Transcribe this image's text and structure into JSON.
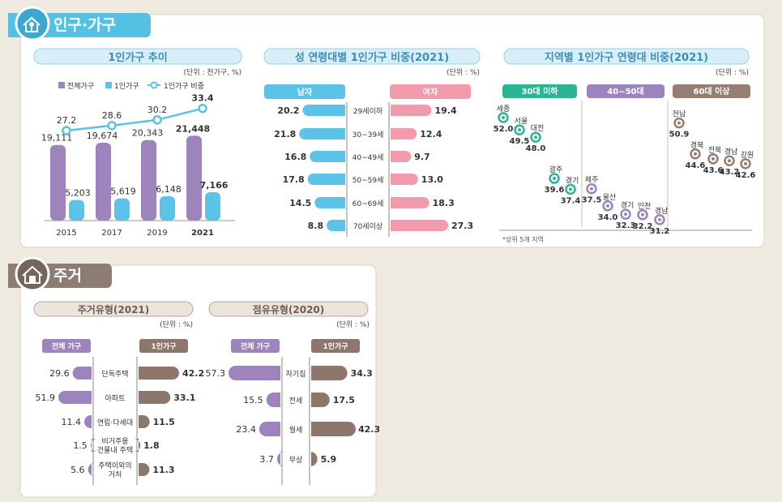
{
  "sections": {
    "population": {
      "title": "인구·가구",
      "color": "#54c0e4"
    },
    "housing": {
      "title": "주거",
      "color": "#8d7c72"
    }
  },
  "colors": {
    "purple": "#9d84bd",
    "blue": "#5bc3e8",
    "pink": "#f49aad",
    "green": "#2cb593",
    "violet": "#9b85bf",
    "brown": "#957f72",
    "housing_bar": "#8d776c"
  },
  "chart_data": [
    {
      "id": "trend",
      "type": "bar",
      "title": "1인가구 추이",
      "unit": "(단위 : 천가구, %)",
      "legend": [
        "전체가구",
        "1인가구",
        "1인가구 비중"
      ],
      "categories": [
        "2015",
        "2017",
        "2019",
        "2021"
      ],
      "series": [
        {
          "name": "전체가구",
          "values": [
            19111,
            19674,
            20343,
            21448
          ],
          "labels": [
            "19,111",
            "19,674",
            "20,343",
            "21,448"
          ]
        },
        {
          "name": "1인가구",
          "values": [
            5203,
            5619,
            6148,
            7166
          ],
          "labels": [
            "5,203",
            "5,619",
            "6,148",
            "7,166"
          ]
        },
        {
          "name": "1인가구 비중",
          "type": "line",
          "values": [
            27.2,
            28.6,
            30.2,
            33.4
          ],
          "labels": [
            "27.2",
            "28.6",
            "30.2",
            "33.4"
          ]
        }
      ]
    },
    {
      "id": "sexage",
      "type": "bar",
      "title": "성 연령대별 1인가구 비중(2021)",
      "unit": "(단위 : %)",
      "categories": [
        "29세이하",
        "30~39세",
        "40~49세",
        "50~59세",
        "60~69세",
        "70세이상"
      ],
      "series": [
        {
          "name": "남자",
          "values": [
            20.2,
            21.8,
            16.8,
            17.8,
            14.5,
            8.8
          ],
          "labels": [
            "20.2",
            "21.8",
            "16.8",
            "17.8",
            "14.5",
            "8.8"
          ]
        },
        {
          "name": "여자",
          "values": [
            19.4,
            12.4,
            9.7,
            13.0,
            18.3,
            27.3
          ],
          "labels": [
            "19.4",
            "12.4",
            "9.7",
            "13.0",
            "18.3",
            "27.3"
          ]
        }
      ]
    },
    {
      "id": "region",
      "type": "scatter",
      "title": "지역별 1인가구 연령대 비중(2021)",
      "unit": "(단위 : %)",
      "note": "*상위 5개 지역",
      "groups": [
        {
          "name": "30대 이하",
          "points": [
            {
              "region": "세종",
              "value": 52.0,
              "label": "52.0"
            },
            {
              "region": "서울",
              "value": 49.5,
              "label": "49.5"
            },
            {
              "region": "대전",
              "value": 48.0,
              "label": "48.0"
            },
            {
              "region": "광주",
              "value": 39.6,
              "label": "39.6"
            },
            {
              "region": "경기",
              "value": 37.4,
              "label": "37.4"
            }
          ]
        },
        {
          "name": "40~50대",
          "points": [
            {
              "region": "제주",
              "value": 37.5,
              "label": "37.5"
            },
            {
              "region": "울산",
              "value": 34.0,
              "label": "34.0"
            },
            {
              "region": "경기",
              "value": 32.3,
              "label": "32.3"
            },
            {
              "region": "인천",
              "value": 32.2,
              "label": "32.2"
            },
            {
              "region": "경남",
              "value": 31.2,
              "label": "31.2"
            }
          ]
        },
        {
          "name": "60대 이상",
          "points": [
            {
              "region": "전남",
              "value": 50.9,
              "label": "50.9"
            },
            {
              "region": "경북",
              "value": 44.6,
              "label": "44.6"
            },
            {
              "region": "전북",
              "value": 43.6,
              "label": "43.6"
            },
            {
              "region": "경남",
              "value": 43.2,
              "label": "43.2"
            },
            {
              "region": "강원",
              "value": 42.6,
              "label": "42.6"
            }
          ]
        }
      ]
    },
    {
      "id": "housetype",
      "type": "bar",
      "title": "주거유형(2021)",
      "unit": "(단위 : %)",
      "categories": [
        "단독주택",
        "아파트",
        "연립·다세대",
        "비거주용 건물내 주택",
        "주택이외의 거처"
      ],
      "category_lines": [
        [
          "단독주택"
        ],
        [
          "아파트"
        ],
        [
          "연립·다세대"
        ],
        [
          "비거주용",
          "건물내 주택"
        ],
        [
          "주택이외의",
          "거처"
        ]
      ],
      "series": [
        {
          "name": "전체 가구",
          "values": [
            29.6,
            51.9,
            11.4,
            1.5,
            5.6
          ],
          "labels": [
            "29.6",
            "51.9",
            "11.4",
            "1.5",
            "5.6"
          ]
        },
        {
          "name": "1인가구",
          "values": [
            42.2,
            33.1,
            11.5,
            1.8,
            11.3
          ],
          "labels": [
            "42.2",
            "33.1",
            "11.5",
            "1.8",
            "11.3"
          ]
        }
      ]
    },
    {
      "id": "tenure",
      "type": "bar",
      "title": "점유유형(2020)",
      "unit": "(단위 : %)",
      "categories": [
        "자기집",
        "전세",
        "월세",
        "무상"
      ],
      "series": [
        {
          "name": "전체 가구",
          "values": [
            57.3,
            15.5,
            23.4,
            3.7
          ],
          "labels": [
            "57.3",
            "15.5",
            "23.4",
            "3.7"
          ]
        },
        {
          "name": "1인가구",
          "values": [
            34.3,
            17.5,
            42.3,
            5.9
          ],
          "labels": [
            "34.3",
            "17.5",
            "42.3",
            "5.9"
          ]
        }
      ]
    }
  ]
}
